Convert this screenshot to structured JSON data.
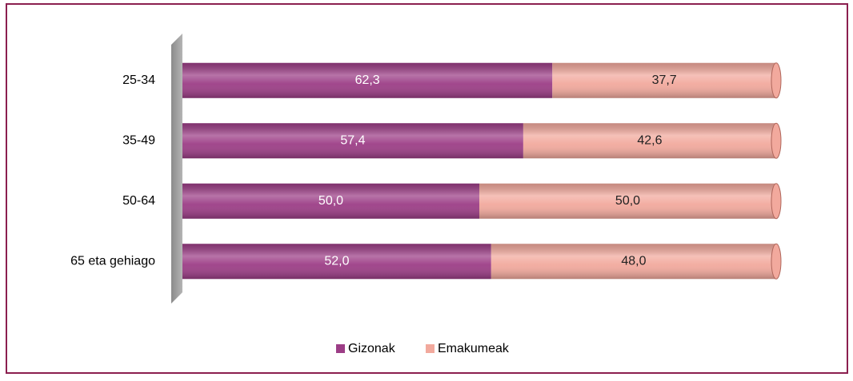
{
  "chart_data": {
    "type": "stacked_bar_horizontal",
    "categories": [
      "25-34",
      "35-49",
      "50-64",
      "65 eta gehiago"
    ],
    "series": [
      {
        "name": "Gizonak",
        "color": "#9c3d86",
        "values": [
          62.3,
          57.4,
          50.0,
          52.0
        ],
        "value_labels": [
          "62,3",
          "57,4",
          "50,0",
          "52,0"
        ]
      },
      {
        "name": "Emakumeak",
        "color": "#f2a99d",
        "values": [
          37.7,
          42.6,
          50.0,
          48.0
        ],
        "value_labels": [
          "37,7",
          "42,6",
          "50,0",
          "48,0"
        ]
      }
    ],
    "xlim": [
      0,
      100
    ],
    "legend": "bottom"
  }
}
